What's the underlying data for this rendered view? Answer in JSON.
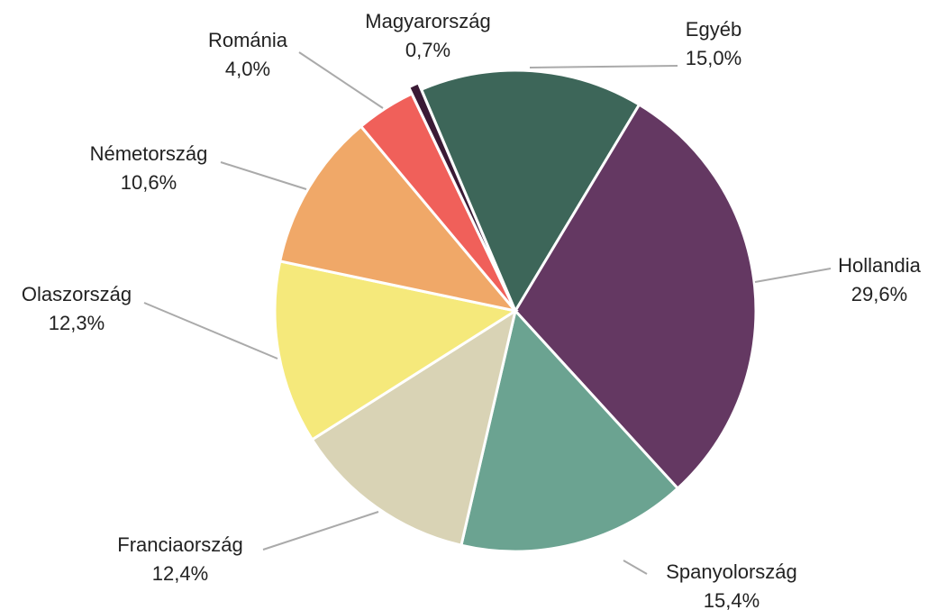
{
  "chart_data": {
    "type": "pie",
    "categories": [
      "Egyéb",
      "Hollandia",
      "Spanyolország",
      "Franciaország",
      "Olaszország",
      "Németország",
      "Románia",
      "Magyarország"
    ],
    "values": [
      15.0,
      29.6,
      15.4,
      12.4,
      12.3,
      10.6,
      4.0,
      0.7
    ],
    "value_labels": [
      "15,0%",
      "29,6%",
      "15,4%",
      "12,4%",
      "12,3%",
      "10,6%",
      "4,0%",
      "0,7%"
    ],
    "colors": [
      "#3d6659",
      "#643862",
      "#6ba391",
      "#d9d3b5",
      "#f5e97b",
      "#f0a868",
      "#f0605a",
      "#3a1a35"
    ]
  }
}
